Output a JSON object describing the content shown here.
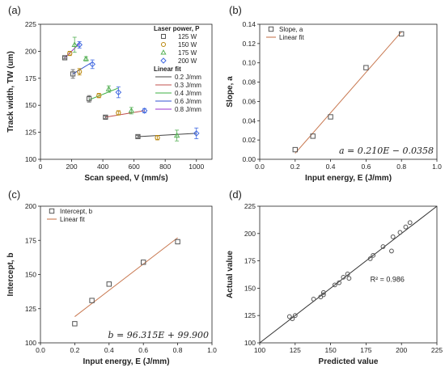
{
  "chart_data": [
    {
      "id": "a",
      "type": "scatter",
      "panel_label": "(a)",
      "xlabel": "Scan speed, V (mm/s)",
      "ylabel": "Track width, TW (um)",
      "xlim": [
        0,
        1100
      ],
      "ylim": [
        100,
        225
      ],
      "xticks": [
        0,
        200,
        400,
        600,
        800,
        1000
      ],
      "yticks": [
        100,
        125,
        150,
        175,
        200,
        225
      ],
      "grid": false,
      "legend_position": "top-right",
      "legend_title_points": "Laser power, P",
      "legend_title_fits": "Linear fit",
      "series": [
        {
          "name": "125 W",
          "marker": "square",
          "color": "#555555",
          "x": [
            156,
            208,
            312,
            417,
            625
          ],
          "y": [
            194,
            179,
            156,
            139,
            121
          ],
          "err": [
            1,
            4,
            3,
            1,
            1
          ]
        },
        {
          "name": "150 W",
          "marker": "circle",
          "color": "#b8860b",
          "x": [
            188,
            250,
            375,
            500,
            750
          ],
          "y": [
            198,
            181,
            159,
            143,
            120
          ],
          "err": [
            2,
            3,
            2,
            2,
            2
          ]
        },
        {
          "name": "175 W",
          "marker": "triangle",
          "color": "#55b055",
          "x": [
            219,
            292,
            438,
            583,
            875
          ],
          "y": [
            206,
            193,
            165,
            145,
            122
          ],
          "err": [
            7,
            2,
            3,
            3,
            5
          ]
        },
        {
          "name": "200 W",
          "marker": "diamond",
          "color": "#4169e1",
          "x": [
            250,
            333,
            500,
            667,
            1000
          ],
          "y": [
            206,
            188,
            162,
            145,
            124
          ],
          "err": [
            3,
            4,
            5,
            2,
            5
          ]
        }
      ],
      "fits": [
        {
          "name": "0.2 J/mm",
          "color": "#444444",
          "x": [
            625,
            1000
          ],
          "y": [
            121,
            124
          ]
        },
        {
          "name": "0.3 J/mm",
          "color": "#c0504d",
          "x": [
            417,
            667
          ],
          "y": [
            139,
            145
          ]
        },
        {
          "name": "0.4 J/mm",
          "color": "#3cb043",
          "x": [
            312,
            500
          ],
          "y": [
            155,
            166
          ]
        },
        {
          "name": "0.6 J/mm",
          "color": "#3050d0",
          "x": [
            208,
            333
          ],
          "y": [
            179,
            190
          ]
        },
        {
          "name": "0.8 J/mm",
          "color": "#9932cc",
          "x": [
            156,
            250
          ],
          "y": [
            194,
            207
          ]
        }
      ]
    },
    {
      "id": "b",
      "type": "scatter",
      "panel_label": "(b)",
      "xlabel": "Input energy, E (J/mm)",
      "ylabel": "Slope, a",
      "xlim": [
        0,
        1.0
      ],
      "ylim": [
        0,
        0.14
      ],
      "xticks": [
        0.0,
        0.2,
        0.4,
        0.6,
        0.8,
        1.0
      ],
      "yticks": [
        0.0,
        0.02,
        0.04,
        0.06,
        0.08,
        0.1,
        0.12,
        0.14
      ],
      "grid": false,
      "legend_position": "top-left",
      "series": [
        {
          "name": "Slope, a",
          "marker": "square",
          "color": "#555555",
          "x": [
            0.2,
            0.3,
            0.4,
            0.6,
            0.8
          ],
          "y": [
            0.01,
            0.024,
            0.044,
            0.095,
            0.13
          ]
        }
      ],
      "fit": {
        "name": "Linear fit",
        "color": "#c87850",
        "x": [
          0.2,
          0.8
        ],
        "y": [
          0.0062,
          0.1322
        ]
      },
      "equation": "a = 0.210E − 0.0358"
    },
    {
      "id": "c",
      "type": "scatter",
      "panel_label": "(c)",
      "xlabel": "Input energy, E (J/mm)",
      "ylabel": "Intercept, b",
      "xlim": [
        0,
        1.0
      ],
      "ylim": [
        100,
        200
      ],
      "xticks": [
        0.0,
        0.2,
        0.4,
        0.6,
        0.8,
        1.0
      ],
      "yticks": [
        100,
        125,
        150,
        175,
        200
      ],
      "grid": false,
      "legend_position": "top-left",
      "series": [
        {
          "name": "Intercept, b",
          "marker": "square",
          "color": "#555555",
          "x": [
            0.2,
            0.3,
            0.4,
            0.6,
            0.8
          ],
          "y": [
            114,
            131,
            143,
            159,
            174
          ]
        }
      ],
      "fit": {
        "name": "Linear fit",
        "color": "#c87850",
        "x": [
          0.2,
          0.8
        ],
        "y": [
          119.2,
          176.9
        ]
      },
      "equation": "b = 96.315E + 99.900"
    },
    {
      "id": "d",
      "type": "scatter",
      "panel_label": "(d)",
      "xlabel": "Predicted value",
      "ylabel": "Actual value",
      "xlim": [
        100,
        225
      ],
      "ylim": [
        100,
        225
      ],
      "xticks": [
        100,
        125,
        150,
        175,
        200,
        225
      ],
      "yticks": [
        100,
        125,
        150,
        175,
        200,
        225
      ],
      "grid": false,
      "series": [
        {
          "name": "",
          "marker": "circle",
          "color": "#555555",
          "x": [
            121,
            123,
            125,
            138,
            143,
            145,
            145,
            153,
            156,
            159,
            162,
            163,
            178,
            180,
            187,
            193,
            194,
            199,
            203,
            206
          ],
          "y": [
            124,
            122,
            125,
            140,
            142,
            146,
            144,
            153,
            155,
            160,
            163,
            159,
            177,
            180,
            188,
            184,
            197,
            201,
            206,
            210
          ]
        }
      ],
      "fit": {
        "name": "",
        "color": "#333333",
        "x": [
          100,
          225
        ],
        "y": [
          100,
          225
        ]
      },
      "annotation": "R² = 0.986"
    }
  ]
}
